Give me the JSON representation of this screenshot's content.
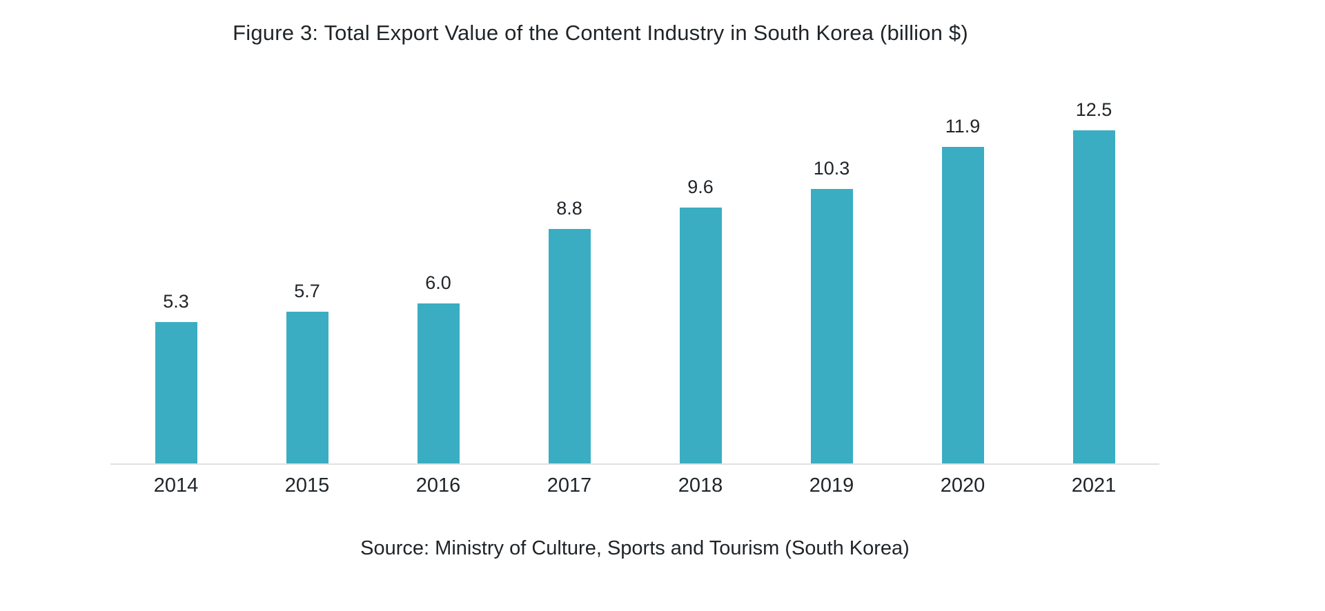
{
  "figure": {
    "title": "Figure 3: Total Export Value of the Content Industry in South Korea (billion $)",
    "source": "Source: Ministry of Culture, Sports and Tourism (South Korea)"
  },
  "chart_data": {
    "type": "bar",
    "title": "Figure 3: Total Export Value of the Content Industry in South Korea (billion $)",
    "categories": [
      "2014",
      "2015",
      "2016",
      "2017",
      "2018",
      "2019",
      "2020",
      "2021"
    ],
    "values": [
      5.3,
      5.7,
      6.0,
      8.8,
      9.6,
      10.3,
      11.9,
      12.5
    ],
    "value_labels": [
      "5.3",
      "5.7",
      "6.0",
      "8.8",
      "9.6",
      "10.3",
      "11.9",
      "12.5"
    ],
    "xlabel": "",
    "ylabel": "",
    "ylim": [
      0,
      13.5
    ],
    "grid": false,
    "legend": "none",
    "bar_color": "#3aadc2",
    "baseline_color": "#e0e0e0",
    "source_note": "Source: Ministry of Culture, Sports and Tourism (South Korea)"
  }
}
